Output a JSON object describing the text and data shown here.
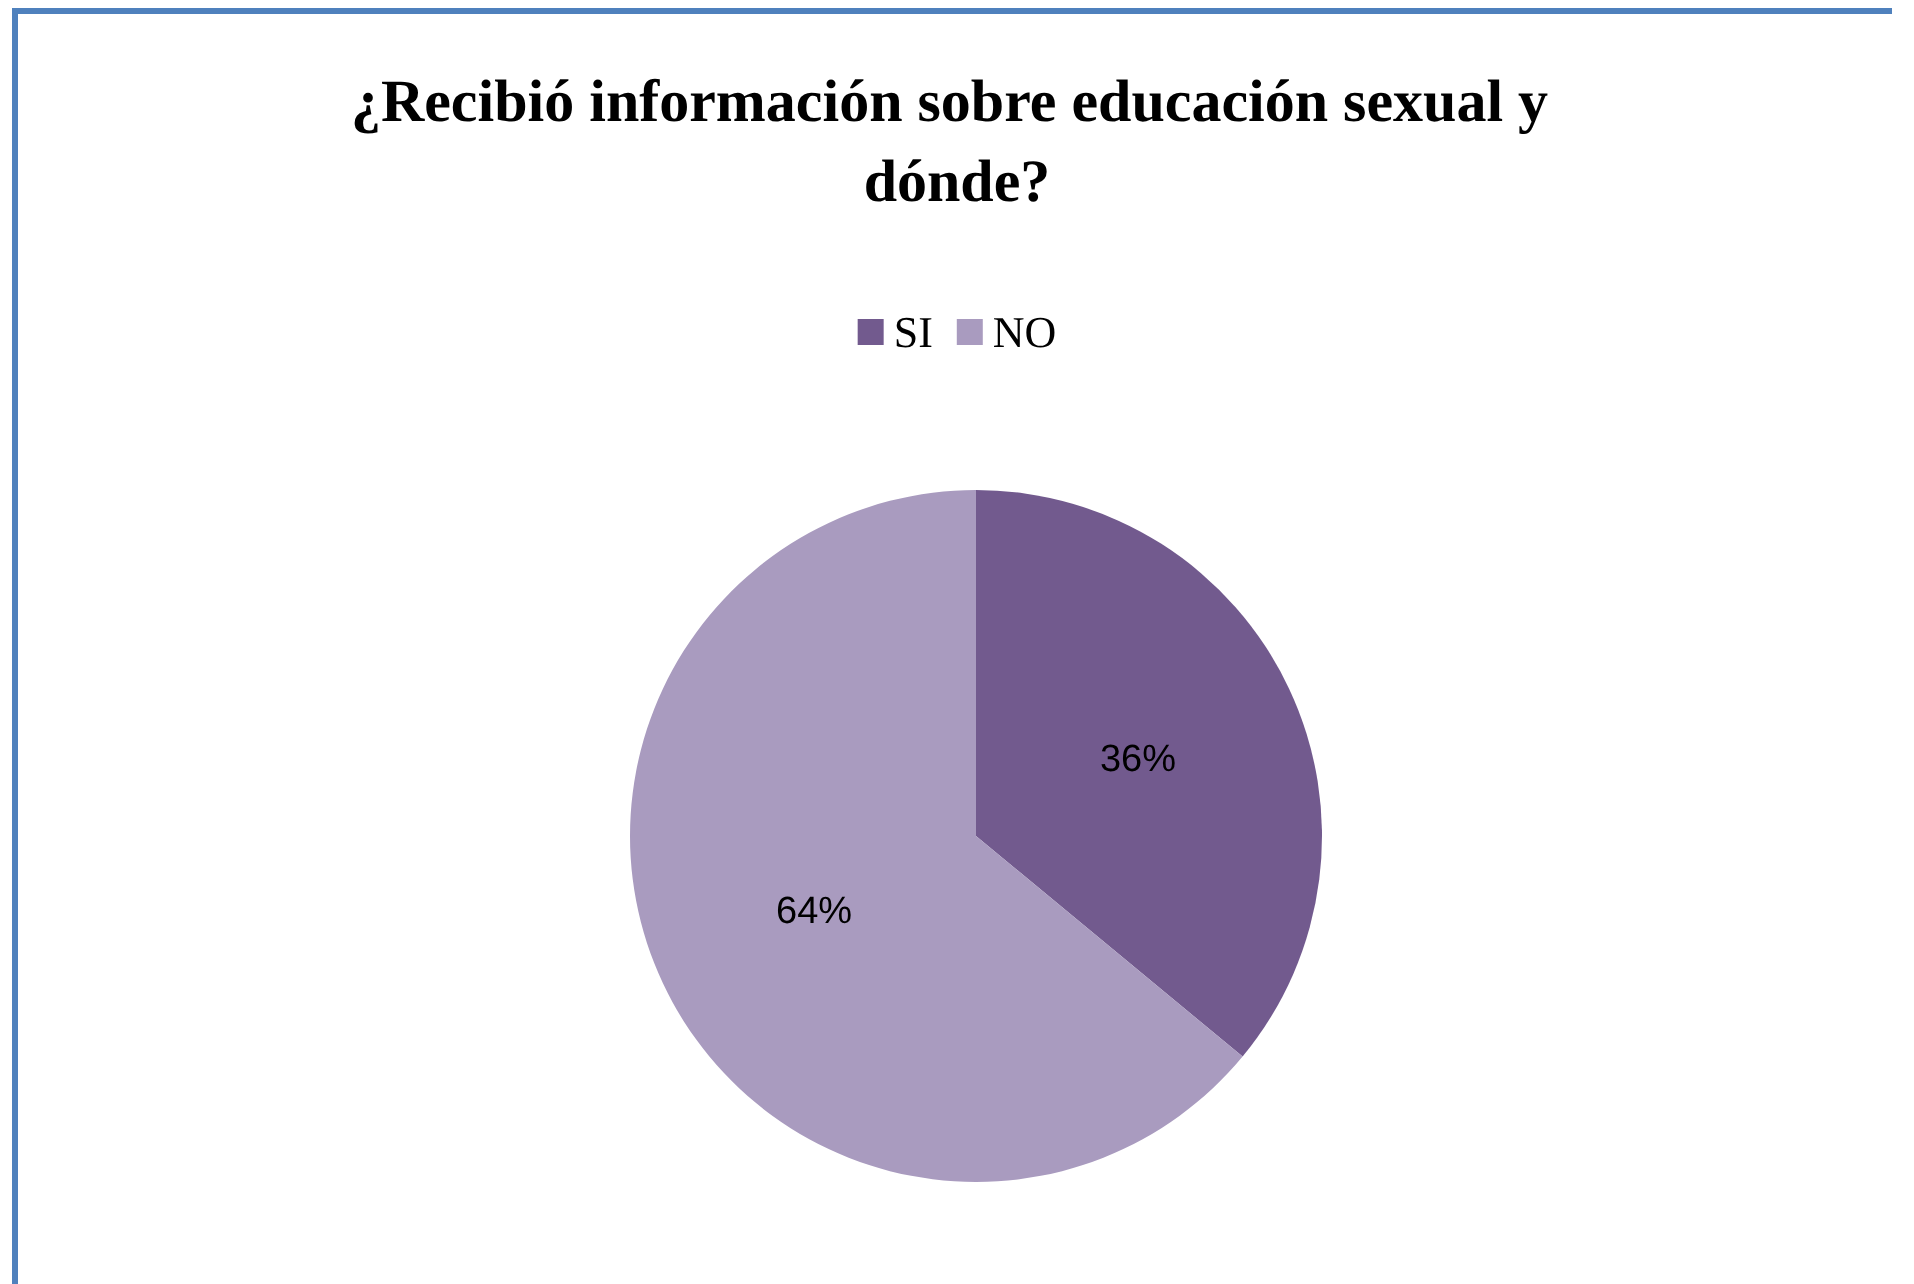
{
  "chart_data": {
    "type": "pie",
    "title": "¿Recibió información sobre educación sexual y dónde?",
    "categories": [
      "SI",
      "NO"
    ],
    "values": [
      36,
      64
    ],
    "colors": [
      "#725a8e",
      "#a99bbf"
    ],
    "value_labels": [
      "36%",
      "64%"
    ],
    "legend": "top"
  }
}
